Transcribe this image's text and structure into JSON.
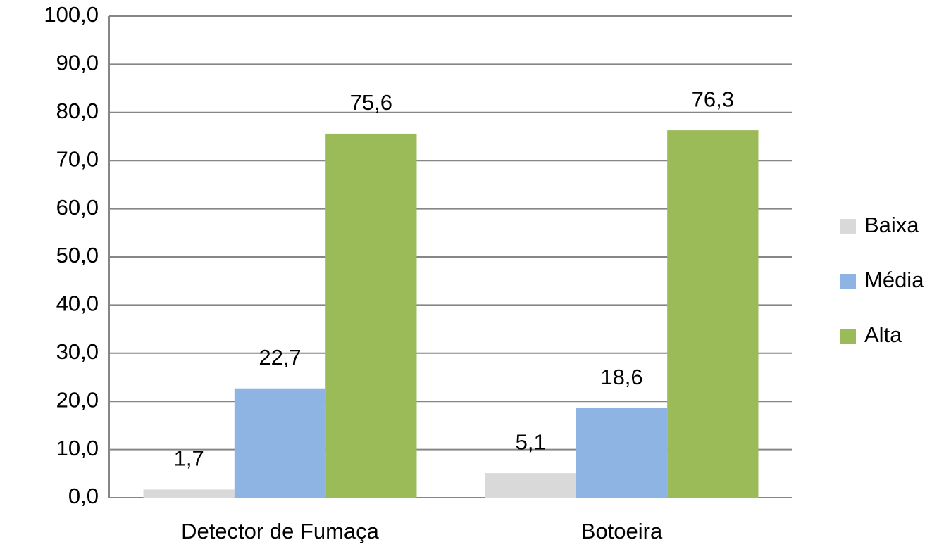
{
  "chart_data": {
    "type": "bar",
    "categories": [
      "Detector de Fumaça",
      "Botoeira"
    ],
    "series": [
      {
        "name": "Baixa",
        "color": "#d9d9d9",
        "values": [
          1.7,
          5.1
        ],
        "value_labels": [
          "1,7",
          "5,1"
        ]
      },
      {
        "name": "Média",
        "color": "#8eb4e3",
        "values": [
          22.7,
          18.6
        ],
        "value_labels": [
          "22,7",
          "18,6"
        ]
      },
      {
        "name": "Alta",
        "color": "#9bbb59",
        "values": [
          75.6,
          76.3
        ],
        "value_labels": [
          "75,6",
          "76,3"
        ]
      }
    ],
    "ylim": [
      0,
      100
    ],
    "yticks": [
      {
        "value": 0,
        "label": "0,0"
      },
      {
        "value": 10,
        "label": "10,0"
      },
      {
        "value": 20,
        "label": "20,0"
      },
      {
        "value": 30,
        "label": "30,0"
      },
      {
        "value": 40,
        "label": "40,0"
      },
      {
        "value": 50,
        "label": "50,0"
      },
      {
        "value": 60,
        "label": "60,0"
      },
      {
        "value": 70,
        "label": "70,0"
      },
      {
        "value": 80,
        "label": "80,0"
      },
      {
        "value": 90,
        "label": "90,0"
      },
      {
        "value": 100,
        "label": "100,0"
      }
    ],
    "grid": true,
    "legend": "right"
  }
}
